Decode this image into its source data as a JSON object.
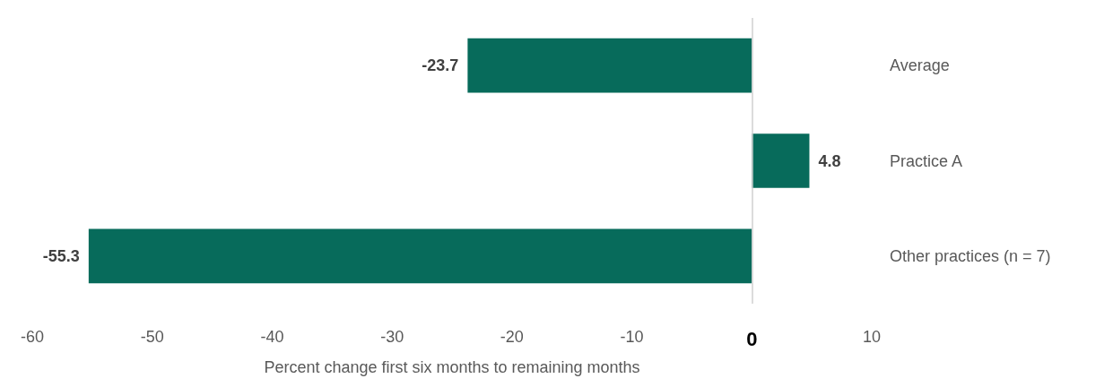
{
  "chart_data": {
    "type": "bar",
    "orientation": "horizontal",
    "categories": [
      "Average",
      "Practice A",
      "Other practices (n = 7)"
    ],
    "values": [
      -23.7,
      4.8,
      -55.3
    ],
    "color": "#076b5b",
    "xlim": [
      -60,
      10
    ],
    "xticks": [
      -60,
      -50,
      -40,
      -30,
      -20,
      -10,
      0,
      10
    ],
    "xlabel": "Percent change first six months to remaining months",
    "data_labels": true,
    "ref_lines": [
      {
        "axis": "x",
        "value": 0,
        "color": "#d0d0d0"
      }
    ]
  }
}
